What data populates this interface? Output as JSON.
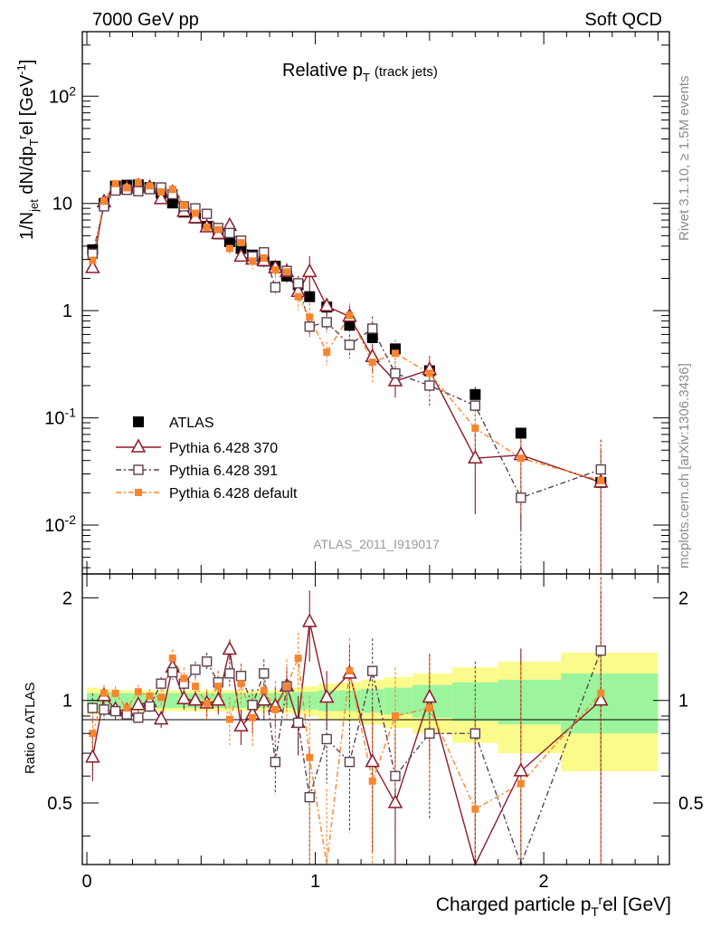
{
  "header": {
    "left": "7000 GeV pp",
    "right": "Soft QCD"
  },
  "plot_title": {
    "main": "Relative p",
    "sub": "T",
    "suffix": "(track jets)"
  },
  "analysis_label": "ATLAS_2011_I919017",
  "side_labels": {
    "rivet": "Rivet 3.1.10, ≥ 1.5M events",
    "mcplots": "mcplots.cern.ch [arXiv:1306.3436]"
  },
  "axes": {
    "y_main": "1/N_jet dN/dp_T^rel [GeV^-1]",
    "y_ratio": "Ratio to ATLAS",
    "x": "Charged particle p_T^rel [GeV]",
    "y_main_ticks": [
      {
        "base": "10",
        "exp": "-2",
        "value": 0.01
      },
      {
        "base": "10",
        "exp": "-1",
        "value": 0.1
      },
      {
        "base": "1",
        "exp": "",
        "value": 1
      },
      {
        "base": "10",
        "exp": "",
        "value": 10
      },
      {
        "base": "10",
        "exp": "2",
        "value": 100
      }
    ],
    "y_ratio_ticks": [
      {
        "label": "0.5",
        "value": 0.5
      },
      {
        "label": "1",
        "value": 1
      },
      {
        "label": "2",
        "value": 2
      }
    ],
    "x_ticks": [
      {
        "label": "0",
        "value": 0
      },
      {
        "label": "1",
        "value": 1
      },
      {
        "label": "2",
        "value": 2
      }
    ]
  },
  "legend": [
    {
      "label": "ATLAS",
      "color": "#000000",
      "marker": "filled-square",
      "line": "none"
    },
    {
      "label": "Pythia 6.428 370",
      "color": "#8b1a2a",
      "marker": "open-triangle",
      "line": "solid"
    },
    {
      "label": "Pythia 6.428 391",
      "color": "#5e3f4e",
      "marker": "open-square",
      "line": "dashdot"
    },
    {
      "label": "Pythia 6.428 default",
      "color": "#f7852d",
      "marker": "filled-square-small",
      "line": "dashdot"
    }
  ],
  "chart_data": {
    "type": "scatter",
    "title": "Relative pT (track jets)",
    "xlabel": "Charged particle pT^rel [GeV]",
    "ylabel": "1/Njet dN/dpT^rel [GeV^-1]",
    "xlim": [
      -0.02,
      2.55
    ],
    "ylim": [
      0.0035,
      400
    ],
    "yscale": "log",
    "ratio_ylim": [
      0.33,
      2.35
    ],
    "x": [
      0.025,
      0.075,
      0.125,
      0.175,
      0.225,
      0.275,
      0.325,
      0.375,
      0.425,
      0.475,
      0.525,
      0.575,
      0.625,
      0.675,
      0.725,
      0.775,
      0.825,
      0.875,
      0.925,
      0.975,
      1.05,
      1.15,
      1.25,
      1.35,
      1.5,
      1.7,
      1.9,
      2.25
    ],
    "series": [
      {
        "name": "ATLAS",
        "values": [
          3.7,
          10.0,
          14.5,
          14.8,
          14.9,
          14.1,
          12.5,
          10.1,
          8.3,
          7.3,
          6.1,
          5.2,
          4.4,
          3.8,
          3.3,
          2.9,
          2.6,
          2.1,
          1.75,
          1.35,
          1.08,
          0.73,
          0.56,
          0.44,
          0.275,
          0.165,
          0.072,
          0.025
        ],
        "ratio_band_inner": [
          0.05,
          0.05,
          0.05,
          0.05,
          0.05,
          0.05,
          0.05,
          0.05,
          0.05,
          0.05,
          0.05,
          0.05,
          0.05,
          0.05,
          0.05,
          0.05,
          0.05,
          0.05,
          0.06,
          0.06,
          0.07,
          0.07,
          0.08,
          0.09,
          0.11,
          0.13,
          0.15,
          0.2
        ],
        "ratio_band_outer": [
          0.09,
          0.08,
          0.07,
          0.07,
          0.07,
          0.07,
          0.07,
          0.07,
          0.07,
          0.07,
          0.07,
          0.07,
          0.07,
          0.07,
          0.07,
          0.07,
          0.07,
          0.08,
          0.09,
          0.1,
          0.12,
          0.13,
          0.15,
          0.17,
          0.2,
          0.25,
          0.3,
          0.38
        ]
      },
      {
        "name": "Pythia 6.428 370",
        "values": [
          2.5,
          10.3,
          13.6,
          13.8,
          14.5,
          14.0,
          11.0,
          12.6,
          8.4,
          7.3,
          6.0,
          5.2,
          6.2,
          3.2,
          3.0,
          2.9,
          2.5,
          2.3,
          1.5,
          2.3,
          1.1,
          0.88,
          0.37,
          0.22,
          0.28,
          0.042,
          0.045,
          0.025
        ],
        "ratio": [
          0.68,
          1.03,
          0.94,
          0.93,
          0.97,
          0.99,
          0.88,
          1.25,
          1.01,
          1.0,
          0.98,
          1.0,
          1.41,
          0.84,
          0.91,
          1.0,
          0.96,
          1.1,
          0.86,
          1.7,
          1.02,
          1.2,
          0.66,
          0.5,
          1.02,
          0.25,
          0.62,
          1.0
        ],
        "ratio_err": [
          0.1,
          0.06,
          0.05,
          0.04,
          0.04,
          0.04,
          0.05,
          0.06,
          0.07,
          0.07,
          0.08,
          0.09,
          0.1,
          0.1,
          0.11,
          0.12,
          0.13,
          0.15,
          0.17,
          0.4,
          0.2,
          0.25,
          0.3,
          0.3,
          0.35,
          0.7,
          0.8,
          1.1
        ]
      },
      {
        "name": "Pythia 6.428 391",
        "values": [
          3.4,
          9.4,
          13.2,
          13.4,
          13.0,
          13.6,
          14.1,
          12.2,
          9.4,
          9.0,
          8.0,
          5.9,
          5.3,
          4.5,
          3.2,
          3.5,
          1.65,
          2.35,
          1.8,
          0.71,
          0.78,
          0.48,
          0.68,
          0.26,
          0.2,
          0.13,
          0.018,
          0.033
        ],
        "ratio": [
          0.95,
          0.94,
          0.93,
          0.91,
          0.89,
          0.96,
          1.12,
          1.21,
          1.12,
          1.23,
          1.3,
          1.13,
          1.2,
          1.18,
          0.97,
          1.2,
          0.66,
          1.1,
          0.86,
          0.52,
          0.77,
          0.66,
          1.22,
          0.6,
          0.8,
          0.8,
          0.25,
          1.4
        ],
        "ratio_err": [
          0.1,
          0.06,
          0.05,
          0.04,
          0.04,
          0.04,
          0.05,
          0.06,
          0.07,
          0.07,
          0.08,
          0.09,
          0.1,
          0.1,
          0.11,
          0.12,
          0.13,
          0.15,
          0.17,
          0.2,
          0.2,
          0.25,
          0.3,
          0.3,
          0.35,
          0.5,
          0.8,
          0.9
        ]
      },
      {
        "name": "Pythia 6.428 default",
        "values": [
          2.95,
          10.5,
          15.3,
          14.0,
          15.7,
          14.6,
          12.8,
          13.5,
          9.6,
          8.1,
          6.0,
          5.7,
          3.8,
          4.3,
          2.9,
          3.1,
          2.4,
          2.3,
          1.35,
          0.87,
          0.41,
          0.9,
          0.33,
          0.4,
          0.26,
          0.08,
          0.042,
          0.026
        ],
        "ratio": [
          0.8,
          1.05,
          1.05,
          0.95,
          1.06,
          1.03,
          1.02,
          1.33,
          1.16,
          1.1,
          0.98,
          1.1,
          0.88,
          1.12,
          0.89,
          1.07,
          0.94,
          1.1,
          1.33,
          0.68,
          0.3,
          1.22,
          0.58,
          0.9,
          0.95,
          0.48,
          0.57,
          1.05
        ],
        "ratio_err": [
          0.1,
          0.06,
          0.05,
          0.04,
          0.05,
          0.05,
          0.06,
          0.08,
          0.09,
          0.1,
          0.1,
          0.12,
          0.14,
          0.15,
          0.16,
          0.18,
          0.2,
          0.22,
          0.25,
          0.35,
          0.25,
          0.3,
          0.35,
          0.35,
          0.4,
          0.5,
          0.7,
          1.2
        ]
      }
    ]
  }
}
